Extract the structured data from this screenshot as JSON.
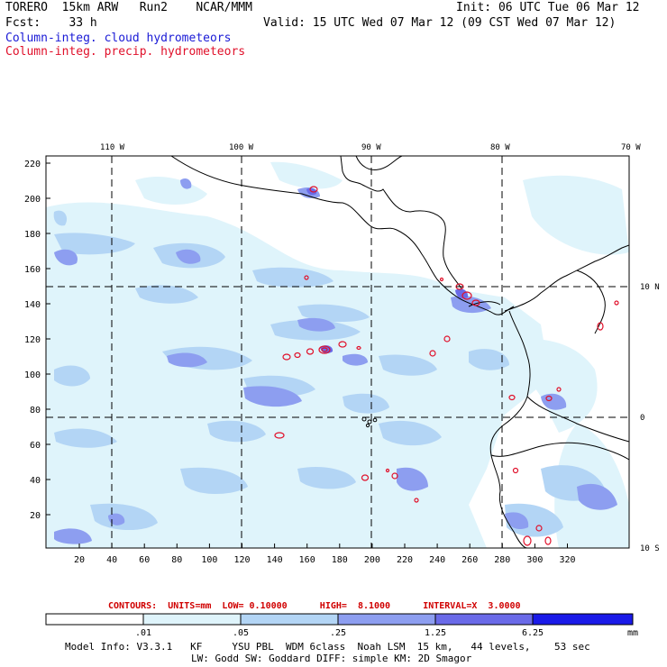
{
  "header": {
    "line1_left": "TORERO  15km ARW   Run2    NCAR/MMM",
    "line1_right": "Init: 06 UTC Tue 06 Mar 12",
    "line2_left": "Fcst:    33 h",
    "line2_right": "Valid: 15 UTC Wed 07 Mar 12 (09 CST Wed 07 Mar 12)",
    "legend_cloud": "Column-integ. cloud hydrometeors",
    "legend_precip": "Column-integ. precip. hydrometeors"
  },
  "map": {
    "top_lon_labels": [
      "110 W",
      "100 W",
      "90 W",
      "80 W",
      "70 W"
    ],
    "right_lat_labels": [
      "10 N",
      "0",
      "10 S"
    ],
    "left_grid_labels": [
      "220",
      "200",
      "180",
      "160",
      "140",
      "120",
      "100",
      "80",
      "60",
      "40",
      "20"
    ],
    "bottom_grid_labels": [
      "20",
      "40",
      "60",
      "80",
      "100",
      "120",
      "140",
      "160",
      "180",
      "200",
      "220",
      "240",
      "260",
      "280",
      "300",
      "320"
    ],
    "colors": {
      "level1": "#dff4fb",
      "level2": "#b3d5f5",
      "level3": "#8d9ef0",
      "level4": "#6a6ae8",
      "level5": "#3434e8",
      "level6": "#1010e0",
      "contour": "#e0102a",
      "coast": "#000000"
    }
  },
  "contours": {
    "label": "CONTOURS:  UNITS=mm  LOW= 0.10000      HIGH=  8.1000      INTERVAL=X  3.0000"
  },
  "colorbar": {
    "ticks": [
      ".01",
      ".05",
      ".25",
      "1.25",
      "6.25"
    ],
    "unit": "mm"
  },
  "footer": {
    "line1": "Model Info: V3.3.1   KF     YSU PBL  WDM 6class  Noah LSM  15 km,   44 levels,    53 sec",
    "line2": "LW: Godd SW: Goddard DIFF: simple KM: 2D Smagor"
  }
}
